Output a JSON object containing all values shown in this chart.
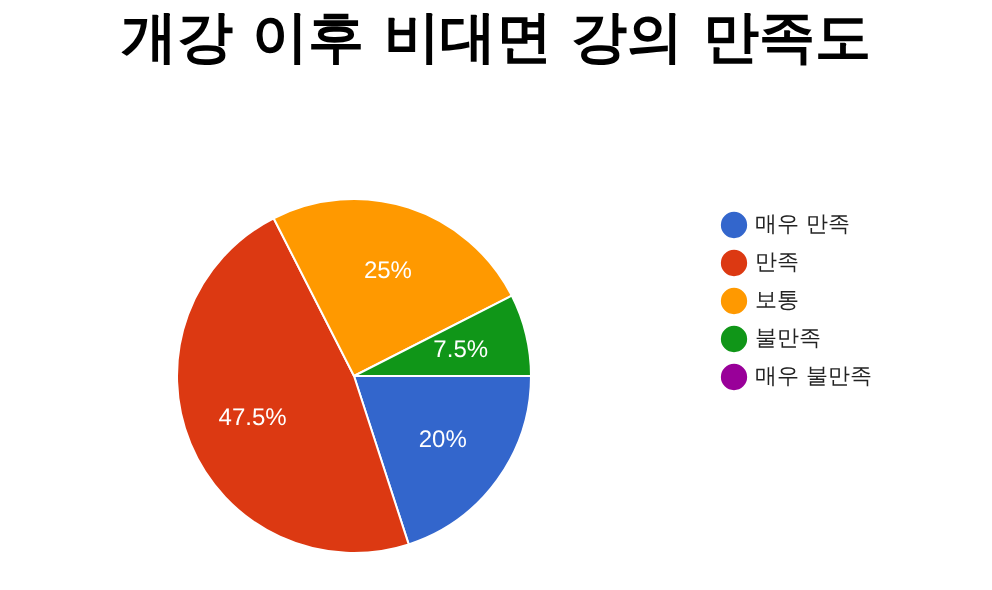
{
  "chart_data": {
    "type": "pie",
    "title": "개강 이후 비대면 강의 만족도",
    "categories": [
      "매우 만족",
      "만족",
      "보통",
      "불만족",
      "매우 불만족"
    ],
    "values": [
      20,
      47.5,
      25,
      7.5,
      0
    ],
    "colors": [
      "#3366cc",
      "#dc3912",
      "#ff9900",
      "#109618",
      "#990099"
    ],
    "value_labels": [
      "20%",
      "47.5%",
      "25%",
      "7.5%",
      null
    ],
    "legend": "right"
  }
}
